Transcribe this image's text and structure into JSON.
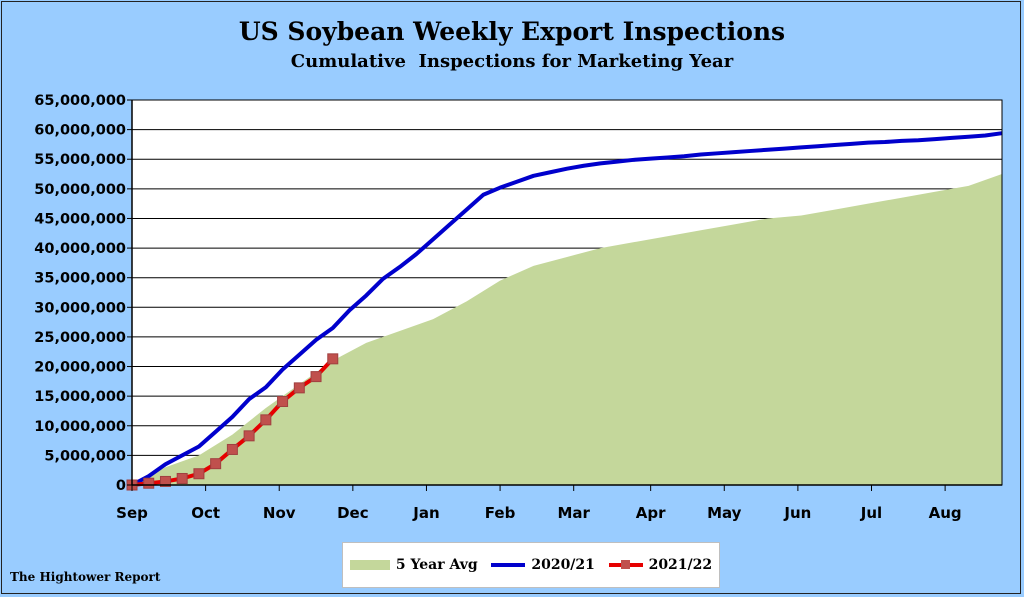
{
  "footer": "The Hightower Report",
  "colors": {
    "background": "#99CCFF",
    "area": "#C4D79B",
    "line_2020": "#0000CC",
    "line_2021": "#E60000",
    "marker_2021": "#C0504D"
  },
  "chart_data": {
    "type": "line",
    "title": "US Soybean Weekly Export Inspections",
    "subtitle": "Cumulative  Inspections for Marketing Year",
    "xlabel": "",
    "ylabel": "",
    "xlim": [
      0,
      52
    ],
    "ylim": [
      0,
      65000000
    ],
    "y_ticks": [
      0,
      5000000,
      10000000,
      15000000,
      20000000,
      25000000,
      30000000,
      35000000,
      40000000,
      45000000,
      50000000,
      55000000,
      60000000,
      65000000
    ],
    "y_tick_labels": [
      "0",
      "5,000,000",
      "10,000,000",
      "15,000,000",
      "20,000,000",
      "25,000,000",
      "30,000,000",
      "35,000,000",
      "40,000,000",
      "45,000,000",
      "50,000,000",
      "55,000,000",
      "60,000,000",
      "65,000,000"
    ],
    "month_labels": [
      "Sep",
      "Oct",
      "Nov",
      "Dec",
      "Jan",
      "Feb",
      "Mar",
      "Apr",
      "May",
      "Jun",
      "Jul",
      "Aug"
    ],
    "month_positions": [
      0,
      4.4,
      8.8,
      13.2,
      17.6,
      22,
      26.4,
      31,
      35.4,
      39.8,
      44.2,
      48.6
    ],
    "grid": "horizontal",
    "legend_position": "bottom",
    "series": [
      {
        "name": "5 Year Avg",
        "kind": "area",
        "x": [
          0,
          2,
          4,
          6,
          8,
          10,
          12,
          14,
          16,
          18,
          20,
          22,
          24,
          26,
          28,
          30,
          32,
          34,
          36,
          38,
          40,
          42,
          44,
          46,
          48,
          50,
          52
        ],
        "values": [
          0,
          3000000,
          5000000,
          8500000,
          13000000,
          17000000,
          21000000,
          24000000,
          26000000,
          28000000,
          31000000,
          34500000,
          37000000,
          38500000,
          40000000,
          41000000,
          42000000,
          43000000,
          44000000,
          45000000,
          45500000,
          46500000,
          47500000,
          48500000,
          49500000,
          50500000,
          52500000
        ]
      },
      {
        "name": "2020/21",
        "kind": "line",
        "x": [
          0,
          1,
          2,
          3,
          4,
          5,
          6,
          7,
          8,
          9,
          10,
          11,
          12,
          13,
          14,
          15,
          16,
          17,
          18,
          19,
          20,
          21,
          22,
          23,
          24,
          25,
          26,
          27,
          28,
          29,
          30,
          31,
          32,
          33,
          34,
          35,
          36,
          37,
          38,
          39,
          40,
          41,
          42,
          43,
          44,
          45,
          46,
          47,
          48,
          49,
          50,
          51,
          52
        ],
        "values": [
          0,
          1500000,
          3500000,
          5000000,
          6500000,
          9000000,
          11500000,
          14500000,
          16500000,
          19500000,
          22000000,
          24500000,
          26500000,
          29500000,
          32000000,
          34800000,
          36800000,
          39000000,
          41500000,
          44000000,
          46500000,
          49000000,
          50200000,
          51200000,
          52200000,
          52800000,
          53400000,
          53900000,
          54300000,
          54600000,
          54900000,
          55100000,
          55300000,
          55500000,
          55800000,
          56000000,
          56200000,
          56400000,
          56600000,
          56800000,
          57000000,
          57200000,
          57400000,
          57600000,
          57800000,
          57900000,
          58100000,
          58200000,
          58400000,
          58600000,
          58800000,
          59000000,
          59400000
        ]
      },
      {
        "name": "2021/22",
        "kind": "line-marker",
        "x": [
          0,
          1,
          2,
          3,
          4,
          5,
          6,
          7,
          8,
          9,
          10,
          11,
          12
        ],
        "values": [
          0,
          300000,
          600000,
          1100000,
          1900000,
          3600000,
          6000000,
          8300000,
          11000000,
          14100000,
          16400000,
          18300000,
          21300000
        ]
      }
    ]
  }
}
